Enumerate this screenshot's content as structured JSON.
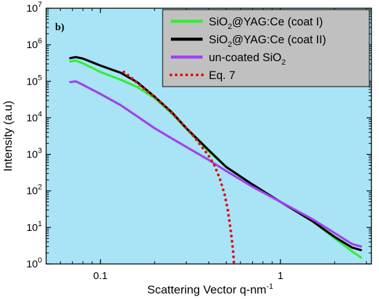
{
  "chart_data": {
    "type": "line",
    "panel_label": "b)",
    "xlabel": "Scattering Vector q-nm",
    "xlabel_sup": "-1",
    "ylabel": "Intensity (a.u)",
    "xscale": "log",
    "yscale": "log",
    "xlim": [
      0.05,
      3.2
    ],
    "ylim": [
      1,
      10000000
    ],
    "x_ticks": [
      {
        "value": 0.1,
        "label": "0.1"
      },
      {
        "value": 1,
        "label": "1"
      }
    ],
    "y_ticks": [
      {
        "value": 1,
        "base": "10",
        "exp": "0"
      },
      {
        "value": 10,
        "base": "10",
        "exp": "1"
      },
      {
        "value": 100,
        "base": "10",
        "exp": "2"
      },
      {
        "value": 1000,
        "base": "10",
        "exp": "3"
      },
      {
        "value": 10000,
        "base": "10",
        "exp": "4"
      },
      {
        "value": 100000,
        "base": "10",
        "exp": "5"
      },
      {
        "value": 1000000,
        "base": "10",
        "exp": "6"
      },
      {
        "value": 10000000,
        "base": "10",
        "exp": "7"
      }
    ],
    "background_color": "#a8e4f6",
    "legend_position": "top-right",
    "legend_background": "#c0c0c0",
    "series": [
      {
        "name": "SiO2@YAG:Ce (coat I)",
        "legend_parts": [
          {
            "t": "SiO"
          },
          {
            "t": "2",
            "sub": true
          },
          {
            "t": "@YAG:Ce (coat I)"
          }
        ],
        "color": "#33ee33",
        "style": "solid",
        "points": [
          [
            0.068,
            350000
          ],
          [
            0.073,
            370000
          ],
          [
            0.08,
            310000
          ],
          [
            0.1,
            180000
          ],
          [
            0.13,
            110000
          ],
          [
            0.16,
            70000
          ],
          [
            0.2,
            35000
          ],
          [
            0.25,
            13000
          ],
          [
            0.3,
            5000
          ],
          [
            0.4,
            1200
          ],
          [
            0.5,
            450
          ],
          [
            0.7,
            150
          ],
          [
            1.0,
            50
          ],
          [
            1.5,
            15
          ],
          [
            2.0,
            5
          ],
          [
            2.5,
            2.2
          ],
          [
            2.8,
            1.5
          ]
        ]
      },
      {
        "name": "SiO2@YAG:Ce (coat II)",
        "legend_parts": [
          {
            "t": "SiO"
          },
          {
            "t": "2",
            "sub": true
          },
          {
            "t": "@YAG:Ce (coat II)"
          }
        ],
        "color": "#000000",
        "style": "solid",
        "points": [
          [
            0.068,
            430000
          ],
          [
            0.073,
            460000
          ],
          [
            0.08,
            420000
          ],
          [
            0.1,
            270000
          ],
          [
            0.13,
            170000
          ],
          [
            0.16,
            95000
          ],
          [
            0.2,
            38000
          ],
          [
            0.25,
            14000
          ],
          [
            0.3,
            5200
          ],
          [
            0.4,
            1300
          ],
          [
            0.5,
            450
          ],
          [
            0.7,
            150
          ],
          [
            1.0,
            50
          ],
          [
            1.5,
            15
          ],
          [
            2.0,
            5.5
          ],
          [
            2.5,
            2.8
          ],
          [
            2.8,
            2.4
          ]
        ]
      },
      {
        "name": "un-coated SiO2",
        "legend_parts": [
          {
            "t": "un-coated SiO"
          },
          {
            "t": "2",
            "sub": true
          }
        ],
        "color": "#a040f0",
        "style": "solid",
        "points": [
          [
            0.068,
            95000
          ],
          [
            0.073,
            100000
          ],
          [
            0.08,
            80000
          ],
          [
            0.1,
            45000
          ],
          [
            0.13,
            22000
          ],
          [
            0.16,
            11000
          ],
          [
            0.2,
            5200
          ],
          [
            0.25,
            2700
          ],
          [
            0.3,
            1600
          ],
          [
            0.4,
            700
          ],
          [
            0.5,
            350
          ],
          [
            0.7,
            130
          ],
          [
            1.0,
            50
          ],
          [
            1.5,
            17
          ],
          [
            2.0,
            7
          ],
          [
            2.5,
            3.5
          ],
          [
            2.8,
            3
          ]
        ]
      },
      {
        "name": "Eq. 7",
        "legend_parts": [
          {
            "t": "Eq. 7"
          }
        ],
        "color": "#e01010",
        "style": "dotted",
        "points": [
          [
            0.135,
            180000
          ],
          [
            0.15,
            120000
          ],
          [
            0.17,
            70000
          ],
          [
            0.2,
            37000
          ],
          [
            0.23,
            20000
          ],
          [
            0.26,
            11000
          ],
          [
            0.3,
            5200
          ],
          [
            0.33,
            3100
          ],
          [
            0.36,
            1800
          ],
          [
            0.4,
            900
          ],
          [
            0.43,
            500
          ],
          [
            0.46,
            220
          ],
          [
            0.49,
            80
          ],
          [
            0.51,
            30
          ],
          [
            0.53,
            8
          ],
          [
            0.545,
            2.5
          ],
          [
            0.552,
            1
          ]
        ]
      }
    ]
  }
}
